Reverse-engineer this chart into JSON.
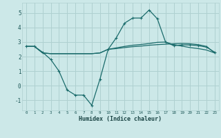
{
  "xlabel": "Humidex (Indice chaleur)",
  "background_color": "#cce8e8",
  "grid_color": "#afd0d0",
  "line_color": "#1a6b6b",
  "xlim": [
    -0.5,
    23.5
  ],
  "ylim": [
    -1.7,
    5.7
  ],
  "xticks": [
    0,
    1,
    2,
    3,
    4,
    5,
    6,
    7,
    8,
    9,
    10,
    11,
    12,
    13,
    14,
    15,
    16,
    17,
    18,
    19,
    20,
    21,
    22,
    23
  ],
  "yticks": [
    -1,
    0,
    1,
    2,
    3,
    4,
    5
  ],
  "line1_x": [
    0,
    1,
    2,
    3,
    4,
    5,
    6,
    7,
    8,
    9,
    10,
    11,
    12,
    13,
    14,
    15,
    16,
    17,
    18,
    19,
    20,
    21,
    22,
    23
  ],
  "line1_y": [
    2.7,
    2.7,
    2.3,
    1.8,
    1.0,
    -0.3,
    -0.65,
    -0.65,
    -1.35,
    0.45,
    2.5,
    3.3,
    4.3,
    4.65,
    4.65,
    5.2,
    4.6,
    3.0,
    2.75,
    2.8,
    2.8,
    2.75,
    2.65,
    2.3
  ],
  "line2_x": [
    0,
    1,
    2,
    3,
    4,
    5,
    6,
    7,
    8,
    9,
    10,
    11,
    12,
    13,
    14,
    15,
    16,
    17,
    18,
    19,
    20,
    21,
    22,
    23
  ],
  "line2_y": [
    2.7,
    2.7,
    2.25,
    2.2,
    2.2,
    2.2,
    2.2,
    2.2,
    2.2,
    2.25,
    2.5,
    2.55,
    2.62,
    2.68,
    2.72,
    2.78,
    2.82,
    2.85,
    2.88,
    2.9,
    2.88,
    2.82,
    2.7,
    2.25
  ],
  "line3_x": [
    0,
    1,
    2,
    3,
    4,
    5,
    6,
    7,
    8,
    9,
    10,
    11,
    12,
    13,
    14,
    15,
    16,
    17,
    18,
    19,
    20,
    21,
    22,
    23
  ],
  "line3_y": [
    2.7,
    2.7,
    2.25,
    2.2,
    2.2,
    2.2,
    2.2,
    2.2,
    2.2,
    2.25,
    2.5,
    2.6,
    2.7,
    2.78,
    2.83,
    2.9,
    2.98,
    3.0,
    2.82,
    2.72,
    2.62,
    2.55,
    2.45,
    2.25
  ]
}
